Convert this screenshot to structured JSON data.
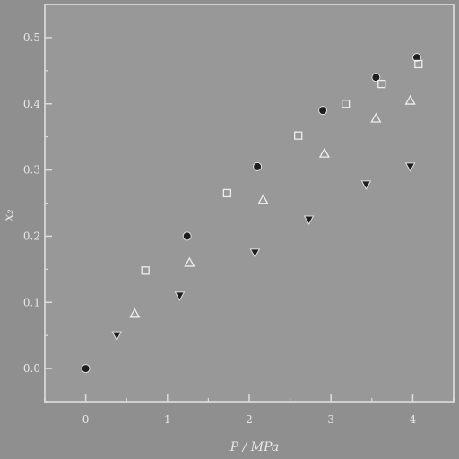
{
  "chart_data": {
    "type": "scatter",
    "title": "",
    "xlabel": "P / MPa",
    "ylabel": "x₂",
    "xlim": [
      -0.5,
      4.5
    ],
    "ylim": [
      -0.05,
      0.55
    ],
    "x_ticks": [
      0,
      1,
      2,
      3,
      4
    ],
    "y_ticks": [
      0.0,
      0.1,
      0.2,
      0.3,
      0.4,
      0.5
    ],
    "x_tick_labels": [
      "0",
      "1",
      "2",
      "3",
      "4"
    ],
    "y_tick_labels": [
      "0.0",
      "0.1",
      "0.2",
      "0.3",
      "0.4",
      "0.5"
    ],
    "grid": false,
    "legend": "none",
    "colors": {
      "background": "#8f8f8f",
      "plot": "#989898",
      "marker": "#1e1e1e",
      "text": "#e8e8e8"
    },
    "series": [
      {
        "marker": "circle",
        "filled": true,
        "x": [
          0.0,
          1.24,
          2.1,
          2.9,
          3.55,
          4.05
        ],
        "y": [
          0.0,
          0.2,
          0.305,
          0.39,
          0.44,
          0.47
        ]
      },
      {
        "marker": "square",
        "filled": false,
        "x": [
          0.73,
          1.73,
          2.6,
          3.18,
          3.62,
          4.07
        ],
        "y": [
          0.148,
          0.265,
          0.352,
          0.4,
          0.43,
          0.46
        ]
      },
      {
        "marker": "triangle-up",
        "filled": false,
        "x": [
          0.6,
          1.27,
          2.17,
          2.92,
          3.55,
          3.97
        ],
        "y": [
          0.083,
          0.16,
          0.255,
          0.325,
          0.378,
          0.405
        ]
      },
      {
        "marker": "triangle-down",
        "filled": true,
        "x": [
          0.38,
          1.15,
          2.07,
          2.73,
          3.43,
          3.97
        ],
        "y": [
          0.05,
          0.11,
          0.175,
          0.225,
          0.278,
          0.305
        ]
      }
    ]
  }
}
